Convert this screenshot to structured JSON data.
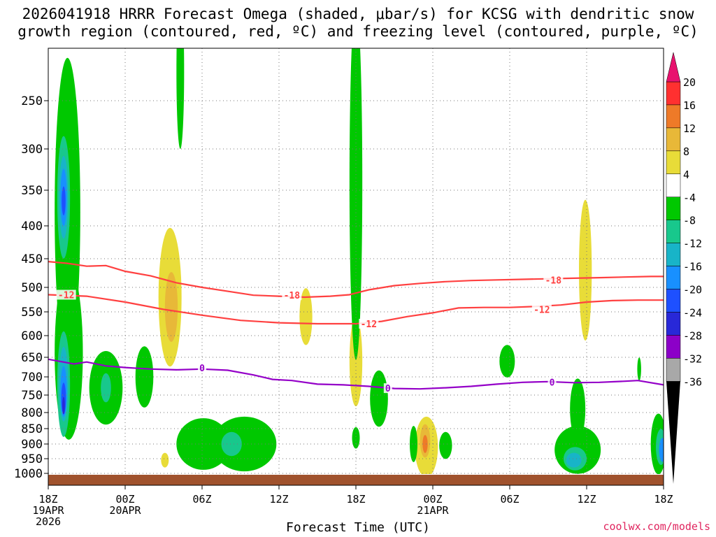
{
  "title_line1": "2026041918 HRRR Forecast Omega (shaded, μbar/s) for KCSG with dendritic snow",
  "title_line2": "growth region (contoured, red, ºC) and freezing level (contoured, purple, ºC)",
  "credit": "coolwx.com/models",
  "chart_data": {
    "type": "heatmap",
    "title": "2026041918 HRRR Forecast Omega (shaded, μbar/s) for KCSG with dendritic snow growth region (contoured, red, ºC) and freezing level (contoured, purple, ºC)",
    "xlabel": "Forecast Time (UTC)",
    "ylabel": "",
    "x_ticks": [
      {
        "hour": 0,
        "lines": [
          "18Z",
          "19APR",
          "2026"
        ]
      },
      {
        "hour": 6,
        "lines": [
          "00Z",
          "20APR"
        ]
      },
      {
        "hour": 12,
        "lines": [
          "06Z"
        ]
      },
      {
        "hour": 18,
        "lines": [
          "12Z"
        ]
      },
      {
        "hour": 24,
        "lines": [
          "18Z"
        ]
      },
      {
        "hour": 30,
        "lines": [
          "00Z",
          "21APR"
        ]
      },
      {
        "hour": 36,
        "lines": [
          "06Z"
        ]
      },
      {
        "hour": 42,
        "lines": [
          "12Z"
        ]
      },
      {
        "hour": 48,
        "lines": [
          "18Z"
        ]
      }
    ],
    "xlim": [
      0,
      48
    ],
    "y_ticks": [
      250,
      300,
      350,
      400,
      450,
      500,
      550,
      600,
      650,
      700,
      750,
      800,
      850,
      900,
      950,
      1000
    ],
    "ylim": [
      200,
      1020
    ],
    "grid": true,
    "colorbar": {
      "labels": [
        "20",
        "16",
        "12",
        "8",
        "4",
        "-4",
        "-8",
        "-12",
        "-16",
        "-20",
        "-24",
        "-28",
        "-32",
        "-36"
      ],
      "colors": [
        "#ff3030",
        "#ee7a28",
        "#e8b838",
        "#e8dc38",
        "#ffffff",
        "#00c800",
        "#18c88c",
        "#18b4c8",
        "#1890ff",
        "#1e50ff",
        "#2828d8",
        "#8c00c8",
        "#a8a8a8"
      ],
      "top_arrow_color": "#e8126e",
      "bottom_arrow_color": "#000000"
    },
    "omega_regions": [
      {
        "level": "4",
        "center": [
          0.9,
          780
        ],
        "rx": 0.5,
        "ry": 160
      },
      {
        "level": "4",
        "center": [
          1.0,
          400
        ],
        "rx": 0.7,
        "ry": 100
      },
      {
        "level": "4",
        "center": [
          3.2,
          560
        ],
        "rx": 0.5,
        "ry": 70
      },
      {
        "level": "4",
        "center": [
          4.5,
          930
        ],
        "rx": 1.2,
        "ry": 45
      },
      {
        "level": "4",
        "center": [
          6.0,
          760
        ],
        "rx": 1.3,
        "ry": 110
      },
      {
        "level": "4",
        "center": [
          7.3,
          480
        ],
        "rx": 2.2,
        "ry": 170
      },
      {
        "level": "4",
        "center": [
          9.3,
          560
        ],
        "rx": 1.8,
        "ry": 240
      },
      {
        "level": "4",
        "center": [
          10.6,
          960
        ],
        "rx": 0.9,
        "ry": 45
      },
      {
        "level": "4",
        "center": [
          11.8,
          430
        ],
        "rx": 0.8,
        "ry": 220
      },
      {
        "level": "4",
        "center": [
          12.6,
          720
        ],
        "rx": 1.0,
        "ry": 130
      },
      {
        "level": "4",
        "center": [
          12.0,
          290
        ],
        "rx": 0.2,
        "ry": 70
      },
      {
        "level": "4",
        "center": [
          14.7,
          650
        ],
        "rx": 0.6,
        "ry": 70
      },
      {
        "level": "4",
        "center": [
          16.7,
          470
        ],
        "rx": 0.5,
        "ry": 140
      },
      {
        "level": "4",
        "center": [
          19.4,
          560
        ],
        "rx": 1.4,
        "ry": 190
      },
      {
        "level": "4",
        "center": [
          20.4,
          460
        ],
        "rx": 0.9,
        "ry": 80
      },
      {
        "level": "4",
        "center": [
          22.8,
          600
        ],
        "rx": 1.8,
        "ry": 170
      },
      {
        "level": "4",
        "center": [
          25.0,
          520
        ],
        "rx": 0.8,
        "ry": 120
      },
      {
        "level": "4",
        "center": [
          26.6,
          460
        ],
        "rx": 2.1,
        "ry": 180
      },
      {
        "level": "4",
        "center": [
          30.0,
          340
        ],
        "rx": 0.3,
        "ry": 230
      },
      {
        "level": "4",
        "center": [
          29.2,
          440
        ],
        "rx": 0.9,
        "ry": 170
      },
      {
        "level": "4",
        "center": [
          31.5,
          880
        ],
        "rx": 1.3,
        "ry": 130
      },
      {
        "level": "4",
        "center": [
          35.0,
          880
        ],
        "rx": 0.9,
        "ry": 170
      },
      {
        "level": "4",
        "center": [
          36.8,
          880
        ],
        "rx": 1.3,
        "ry": 130
      },
      {
        "level": "4",
        "center": [
          34.9,
          360
        ],
        "rx": 1.6,
        "ry": 140
      },
      {
        "level": "4",
        "center": [
          37.3,
          380
        ],
        "rx": 1.5,
        "ry": 170
      },
      {
        "level": "4",
        "center": [
          41.1,
          450
        ],
        "rx": 1.7,
        "ry": 260
      },
      {
        "level": "4",
        "center": [
          42.0,
          520
        ],
        "rx": 1.1,
        "ry": 130
      },
      {
        "level": "4",
        "center": [
          44.6,
          540
        ],
        "rx": 0.7,
        "ry": 100
      },
      {
        "level": "4",
        "center": [
          42.4,
          910
        ],
        "rx": 0.2,
        "ry": 30
      },
      {
        "level": "4",
        "center": [
          46.5,
          370
        ],
        "rx": 0.3,
        "ry": 120
      },
      {
        "level": "4",
        "center": [
          44.2,
          760
        ],
        "rx": 0.2,
        "ry": 40
      },
      {
        "level": "8",
        "center": [
          9.5,
          520
        ],
        "rx": 0.9,
        "ry": 130
      },
      {
        "level": "8",
        "center": [
          20.1,
          560
        ],
        "rx": 0.5,
        "ry": 60
      },
      {
        "level": "8",
        "center": [
          24.0,
          660
        ],
        "rx": 0.5,
        "ry": 110
      },
      {
        "level": "8",
        "center": [
          29.5,
          910
        ],
        "rx": 0.9,
        "ry": 100
      },
      {
        "level": "8",
        "center": [
          41.9,
          470
        ],
        "rx": 0.5,
        "ry": 120
      },
      {
        "level": "8",
        "center": [
          9.1,
          955
        ],
        "rx": 0.3,
        "ry": 25
      },
      {
        "level": "12",
        "center": [
          9.6,
          540
        ],
        "rx": 0.5,
        "ry": 70
      },
      {
        "level": "12",
        "center": [
          29.4,
          890
        ],
        "rx": 0.4,
        "ry": 55
      },
      {
        "level": "16",
        "center": [
          29.4,
          900
        ],
        "rx": 0.2,
        "ry": 30
      },
      {
        "level": "-4",
        "center": [
          1.6,
          640
        ],
        "rx": 1.1,
        "ry": 200
      },
      {
        "level": "-4",
        "center": [
          1.5,
          380
        ],
        "rx": 1.0,
        "ry": 210
      },
      {
        "level": "-4",
        "center": [
          4.5,
          730
        ],
        "rx": 1.3,
        "ry": 100
      },
      {
        "level": "-4",
        "center": [
          7.5,
          700
        ],
        "rx": 0.7,
        "ry": 80
      },
      {
        "level": "-4",
        "center": [
          10.3,
          220
        ],
        "rx": 0.3,
        "ry": 80
      },
      {
        "level": "-4",
        "center": [
          12.1,
          900
        ],
        "rx": 2.1,
        "ry": 85
      },
      {
        "level": "-4",
        "center": [
          15.3,
          900
        ],
        "rx": 2.5,
        "ry": 90
      },
      {
        "level": "-4",
        "center": [
          24.0,
          340
        ],
        "rx": 0.5,
        "ry": 230
      },
      {
        "level": "-4",
        "center": [
          25.8,
          760
        ],
        "rx": 0.7,
        "ry": 80
      },
      {
        "level": "-4",
        "center": [
          24.0,
          880
        ],
        "rx": 0.3,
        "ry": 35
      },
      {
        "level": "-4",
        "center": [
          28.5,
          900
        ],
        "rx": 0.3,
        "ry": 60
      },
      {
        "level": "-4",
        "center": [
          31.0,
          905
        ],
        "rx": 0.5,
        "ry": 45
      },
      {
        "level": "-4",
        "center": [
          35.8,
          660
        ],
        "rx": 0.6,
        "ry": 40
      },
      {
        "level": "-4",
        "center": [
          41.3,
          920
        ],
        "rx": 1.8,
        "ry": 80
      },
      {
        "level": "-4",
        "center": [
          41.3,
          790
        ],
        "rx": 0.6,
        "ry": 90
      },
      {
        "level": "-4",
        "center": [
          47.6,
          900
        ],
        "rx": 0.6,
        "ry": 100
      },
      {
        "level": "-4",
        "center": [
          46.1,
          680
        ],
        "rx": 0.15,
        "ry": 30
      },
      {
        "level": "-8",
        "center": [
          1.2,
          360
        ],
        "rx": 0.5,
        "ry": 80
      },
      {
        "level": "-8",
        "center": [
          1.2,
          720
        ],
        "rx": 0.5,
        "ry": 140
      },
      {
        "level": "-8",
        "center": [
          4.5,
          730
        ],
        "rx": 0.4,
        "ry": 40
      },
      {
        "level": "-8",
        "center": [
          14.3,
          900
        ],
        "rx": 0.8,
        "ry": 40
      },
      {
        "level": "-8",
        "center": [
          41.1,
          950
        ],
        "rx": 0.9,
        "ry": 40
      },
      {
        "level": "-8",
        "center": [
          47.8,
          910
        ],
        "rx": 0.4,
        "ry": 60
      },
      {
        "level": "-12",
        "center": [
          1.2,
          360
        ],
        "rx": 0.35,
        "ry": 55
      },
      {
        "level": "-12",
        "center": [
          1.2,
          720
        ],
        "rx": 0.35,
        "ry": 100
      },
      {
        "level": "-12",
        "center": [
          41.0,
          955
        ],
        "rx": 0.6,
        "ry": 25
      },
      {
        "level": "-16",
        "center": [
          1.2,
          360
        ],
        "rx": 0.25,
        "ry": 38
      },
      {
        "level": "-16",
        "center": [
          1.2,
          740
        ],
        "rx": 0.25,
        "ry": 70
      },
      {
        "level": "-16",
        "center": [
          47.9,
          920
        ],
        "rx": 0.25,
        "ry": 40
      },
      {
        "level": "-20",
        "center": [
          1.2,
          365
        ],
        "rx": 0.15,
        "ry": 20
      },
      {
        "level": "-20",
        "center": [
          1.2,
          760
        ],
        "rx": 0.18,
        "ry": 45
      },
      {
        "level": "-24",
        "center": [
          1.2,
          780
        ],
        "rx": 0.1,
        "ry": 25
      }
    ],
    "contours": [
      {
        "name": "-12",
        "color": "#ff4040",
        "label": "-12",
        "label_points": [
          [
            1.4,
            515
          ],
          [
            25.0,
            575
          ],
          [
            38.5,
            545
          ]
        ],
        "points": [
          [
            0,
            515
          ],
          [
            3,
            518
          ],
          [
            6,
            530
          ],
          [
            9,
            545
          ],
          [
            12,
            557
          ],
          [
            15,
            568
          ],
          [
            18,
            573
          ],
          [
            21,
            575
          ],
          [
            24,
            575
          ],
          [
            26,
            570
          ],
          [
            28,
            560
          ],
          [
            30,
            552
          ],
          [
            32,
            542
          ],
          [
            34,
            541
          ],
          [
            36,
            541
          ],
          [
            38,
            539
          ],
          [
            40,
            536
          ],
          [
            42,
            530
          ],
          [
            44,
            527
          ],
          [
            46,
            526
          ],
          [
            48,
            526
          ]
        ]
      },
      {
        "name": "-18",
        "color": "#ff4040",
        "label": "-18",
        "label_points": [
          [
            19.0,
            516
          ],
          [
            39.4,
            487
          ]
        ],
        "points": [
          [
            0,
            455
          ],
          [
            1.5,
            458
          ],
          [
            3,
            463
          ],
          [
            4.5,
            462
          ],
          [
            6,
            472
          ],
          [
            8,
            480
          ],
          [
            10,
            492
          ],
          [
            12,
            500
          ],
          [
            14,
            508
          ],
          [
            16,
            516
          ],
          [
            18,
            518
          ],
          [
            20,
            520
          ],
          [
            22,
            518
          ],
          [
            23.5,
            515
          ],
          [
            25,
            505
          ],
          [
            27,
            497
          ],
          [
            29,
            493
          ],
          [
            31,
            490
          ],
          [
            33,
            488
          ],
          [
            35,
            487
          ],
          [
            37,
            486
          ],
          [
            39,
            485
          ],
          [
            41,
            484
          ],
          [
            43,
            483
          ],
          [
            45,
            482
          ],
          [
            47,
            481
          ],
          [
            48,
            481
          ]
        ]
      },
      {
        "name": "0",
        "color": "#9400c8",
        "label": "0",
        "label_points": [
          [
            12.0,
            677
          ],
          [
            26.5,
            731
          ],
          [
            39.3,
            714
          ]
        ],
        "points": [
          [
            0,
            655
          ],
          [
            2,
            667
          ],
          [
            3,
            662
          ],
          [
            4.5,
            672
          ],
          [
            6,
            676
          ],
          [
            8,
            680
          ],
          [
            10,
            682
          ],
          [
            12,
            680
          ],
          [
            14,
            683
          ],
          [
            16,
            695
          ],
          [
            17.5,
            707
          ],
          [
            19,
            710
          ],
          [
            21,
            720
          ],
          [
            23,
            722
          ],
          [
            25,
            726
          ],
          [
            27,
            732
          ],
          [
            29,
            733
          ],
          [
            31,
            730
          ],
          [
            33,
            726
          ],
          [
            35,
            720
          ],
          [
            37,
            715
          ],
          [
            39,
            713
          ],
          [
            41,
            716
          ],
          [
            43,
            715
          ],
          [
            45,
            712
          ],
          [
            46,
            710
          ],
          [
            48,
            722
          ]
        ]
      }
    ]
  }
}
